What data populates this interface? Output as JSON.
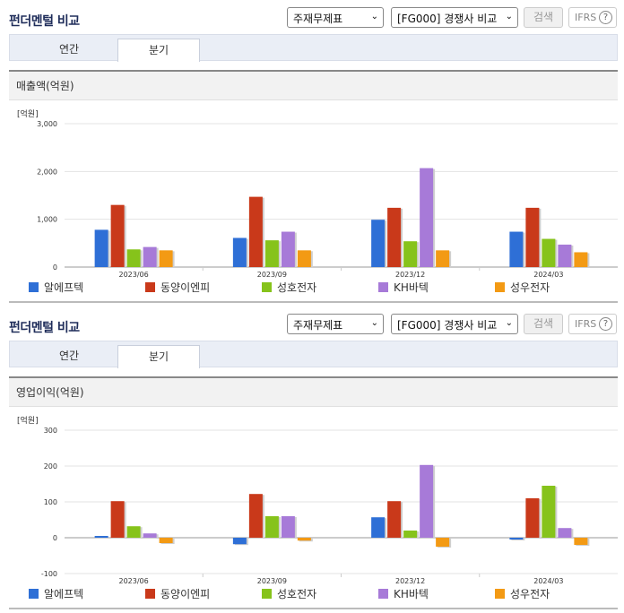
{
  "title": "펀더멘털 비교",
  "dropdowns": {
    "statement": "주재무제표",
    "compare": "[FG000] 경쟁사 비교"
  },
  "buttons": {
    "search": "검색",
    "ifrs": "IFRS"
  },
  "tabs": [
    "연간",
    "분기"
  ],
  "active_tab": "분기",
  "legend": [
    {
      "name": "알에프텍",
      "color": "#2e6fd6"
    },
    {
      "name": "동양이엔피",
      "color": "#c9391a"
    },
    {
      "name": "성호전자",
      "color": "#86c31b"
    },
    {
      "name": "KH바텍",
      "color": "#a77ad8"
    },
    {
      "name": "성우전자",
      "color": "#f39a14"
    }
  ],
  "chart_data": [
    {
      "type": "bar",
      "panel_title": "매출액(억원)",
      "unit_label": "[억원]",
      "categories": [
        "2023/06",
        "2023/09",
        "2023/12",
        "2024/03"
      ],
      "ylim": [
        0,
        3000
      ],
      "yticks": [
        0,
        1000,
        2000,
        3000
      ],
      "ytick_labels": [
        "0",
        "1,000",
        "2,000",
        "3,000"
      ],
      "series": [
        {
          "name": "알에프텍",
          "values": [
            780,
            610,
            990,
            740
          ]
        },
        {
          "name": "동양이엔피",
          "values": [
            1300,
            1470,
            1240,
            1240
          ]
        },
        {
          "name": "성호전자",
          "values": [
            370,
            560,
            540,
            590
          ]
        },
        {
          "name": "KH바텍",
          "values": [
            420,
            740,
            2070,
            470
          ]
        },
        {
          "name": "성우전자",
          "values": [
            350,
            350,
            350,
            310
          ]
        }
      ]
    },
    {
      "type": "bar",
      "panel_title": "영업이익(억원)",
      "unit_label": "[억원]",
      "categories": [
        "2023/06",
        "2023/09",
        "2023/12",
        "2024/03"
      ],
      "ylim": [
        -100,
        300
      ],
      "yticks": [
        -100,
        0,
        100,
        200,
        300
      ],
      "ytick_labels": [
        "-100",
        "0",
        "100",
        "200",
        "300"
      ],
      "series": [
        {
          "name": "알에프텍",
          "values": [
            5,
            -18,
            57,
            -5
          ]
        },
        {
          "name": "동양이엔피",
          "values": [
            102,
            122,
            102,
            110
          ]
        },
        {
          "name": "성호전자",
          "values": [
            32,
            60,
            20,
            145
          ]
        },
        {
          "name": "KH바텍",
          "values": [
            12,
            60,
            203,
            27
          ]
        },
        {
          "name": "성우전자",
          "values": [
            -15,
            -8,
            -25,
            -20
          ]
        }
      ]
    }
  ]
}
